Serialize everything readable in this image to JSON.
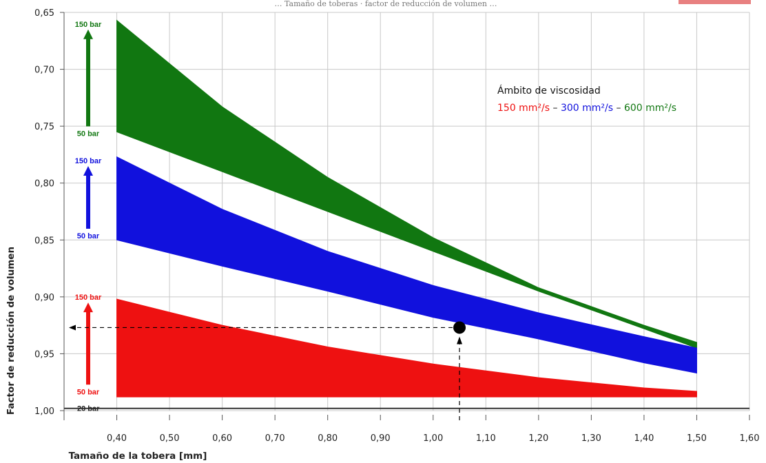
{
  "chart_data": {
    "type": "area",
    "title": "",
    "top_caption": "… Tamaño de toberas · factor de reducción de volumen …",
    "xlabel": "Tamaño de la tobera [mm]",
    "ylabel": "Factor de reducción de volumen",
    "xlim": [
      0.3,
      1.6
    ],
    "ylim": [
      0.65,
      1.0
    ],
    "y_inverted": true,
    "grid": true,
    "x_ticks": [
      "0,40",
      "0,50",
      "0,60",
      "0,70",
      "0,80",
      "0,90",
      "1,00",
      "1,10",
      "1,20",
      "1,30",
      "1,40",
      "1,50",
      "1,60"
    ],
    "x_tick_values": [
      0.4,
      0.5,
      0.6,
      0.7,
      0.8,
      0.9,
      1.0,
      1.1,
      1.2,
      1.3,
      1.4,
      1.5,
      1.6
    ],
    "y_ticks": [
      "0,65",
      "0,70",
      "0,75",
      "0,80",
      "0,85",
      "0,90",
      "0,95",
      "1,00"
    ],
    "y_tick_values": [
      0.65,
      0.7,
      0.75,
      0.8,
      0.85,
      0.9,
      0.95,
      1.0
    ],
    "legend": {
      "title": "Ámbito de viscosidad",
      "items": [
        {
          "label": "150 mm²/s",
          "color": "#ee1111"
        },
        {
          "label": "300 mm²/s",
          "color": "#1111dd"
        },
        {
          "label": "600 mm²/s",
          "color": "#117711"
        }
      ],
      "separator": "–"
    },
    "series": [
      {
        "name": "150 mm²/s",
        "color": "#ee1111",
        "x": [
          0.4,
          0.6,
          0.8,
          1.0,
          1.2,
          1.4,
          1.5
        ],
        "upper_150bar": [
          0.902,
          0.925,
          0.944,
          0.959,
          0.971,
          0.98,
          0.983
        ],
        "lower_50bar": [
          0.988,
          0.988,
          0.988,
          0.988,
          0.988,
          0.988,
          0.988
        ]
      },
      {
        "name": "300 mm²/s",
        "color": "#1111dd",
        "x": [
          0.4,
          0.6,
          0.8,
          1.0,
          1.2,
          1.4,
          1.5
        ],
        "upper_150bar": [
          0.777,
          0.823,
          0.86,
          0.89,
          0.914,
          0.935,
          0.945
        ],
        "lower_50bar": [
          0.85,
          0.873,
          0.895,
          0.918,
          0.937,
          0.958,
          0.967
        ]
      },
      {
        "name": "600 mm²/s",
        "color": "#117711",
        "x": [
          0.4,
          0.6,
          0.8,
          1.0,
          1.2,
          1.4,
          1.5
        ],
        "upper_150bar": [
          0.657,
          0.733,
          0.795,
          0.848,
          0.892,
          0.925,
          0.94
        ],
        "lower_50bar": [
          0.755,
          0.79,
          0.825,
          0.86,
          0.895,
          0.928,
          0.945
        ]
      }
    ],
    "baseline": {
      "label": "20 bar",
      "y": 0.998
    },
    "pressure_markers": [
      {
        "color": "#117711",
        "top_label": "150 bar",
        "bottom_label": "50 bar",
        "from_y": 0.755,
        "to_y": 0.665
      },
      {
        "color": "#1111dd",
        "top_label": "150 bar",
        "bottom_label": "50 bar",
        "from_y": 0.845,
        "to_y": 0.785
      },
      {
        "color": "#ee1111",
        "top_label": "150 bar",
        "bottom_label": "50 bar",
        "from_y": 0.982,
        "to_y": 0.905
      }
    ],
    "example_point": {
      "x": 1.05,
      "y": 0.927
    }
  }
}
